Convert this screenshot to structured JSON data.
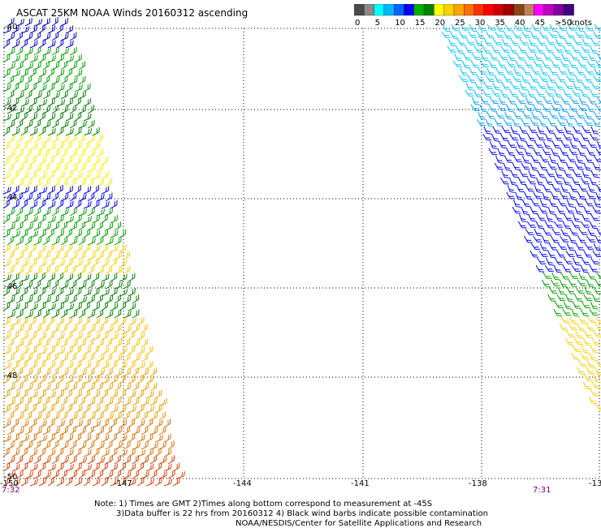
{
  "title": "ASCAT 25KM NOAA Winds 20160312 ascending",
  "legend": {
    "bins": [
      {
        "label": "0",
        "colors": [
          "#4a4a4a",
          "#8a8a8a"
        ]
      },
      {
        "label": "5",
        "colors": [
          "#00ffff",
          "#00b8ff"
        ]
      },
      {
        "label": "10",
        "colors": [
          "#0066ff",
          "#0000ff"
        ]
      },
      {
        "label": "15",
        "colors": [
          "#00b000",
          "#008000"
        ]
      },
      {
        "label": "20",
        "colors": [
          "#ffff00",
          "#ffd000"
        ]
      },
      {
        "label": "25",
        "colors": [
          "#ffa500",
          "#ff7000"
        ]
      },
      {
        "label": "30",
        "colors": [
          "#ff3000",
          "#ff0000"
        ]
      },
      {
        "label": "35",
        "colors": [
          "#d00000",
          "#a00000"
        ]
      },
      {
        "label": "40",
        "colors": [
          "#8b4513",
          "#c08060"
        ]
      },
      {
        "label": "45",
        "colors": [
          "#ff00ff",
          "#c000c0"
        ]
      },
      {
        "label": ">50",
        "colors": [
          "#8000a0",
          "#400080"
        ]
      }
    ],
    "unit_label": "knots"
  },
  "axes": {
    "lat_labels": [
      "-40",
      "-42",
      "-44",
      "-46",
      "-48",
      "-50"
    ],
    "lon_labels": [
      "-150",
      "-147",
      "-144",
      "-141",
      "-138",
      "-13"
    ]
  },
  "times": {
    "left": "7:32",
    "right": "7:31"
  },
  "notes": {
    "line1": "Note: 1) Times are GMT 2)Times along bottom correspond to measurement at -45S",
    "line2": "3)Data buffer is 22 hrs from 20160312 4) Black wind barbs indicate possible contamination",
    "line3": "NOAA/NESDIS/Center for Satellite Applications and Research"
  },
  "chart_data": {
    "type": "map",
    "lat_range": [
      -50,
      -40
    ],
    "lon_range": [
      -150,
      -135.5
    ],
    "grid": true,
    "swaths": [
      {
        "name": "west",
        "color_bands_by_lat": [
          {
            "lat": [
              -40,
              -40.8
            ],
            "speed": "10-15"
          },
          {
            "lat": [
              -40.8,
              -42.7
            ],
            "speed": "15-20"
          },
          {
            "lat": [
              -42.7,
              -43.8
            ],
            "speed": "20-25"
          },
          {
            "lat": [
              -43.8,
              -45.5
            ],
            "speed": "10-20"
          },
          {
            "lat": [
              -45.5,
              -46.6
            ],
            "speed": "15-20"
          },
          {
            "lat": [
              -46.6,
              -48.3
            ],
            "speed": "20-25"
          },
          {
            "lat": [
              -48.3,
              -50
            ],
            "speed": "25-35"
          }
        ]
      },
      {
        "name": "east",
        "color_bands_by_lat": [
          {
            "lat": [
              -40,
              -41.8
            ],
            "speed": "5-10"
          },
          {
            "lat": [
              -41.8,
              -45.5
            ],
            "speed": "10-15"
          },
          {
            "lat": [
              -45.5,
              -46.7
            ],
            "speed": "15-20"
          },
          {
            "lat": [
              -46.7,
              -48.2
            ],
            "speed": "20-25"
          }
        ]
      }
    ]
  }
}
